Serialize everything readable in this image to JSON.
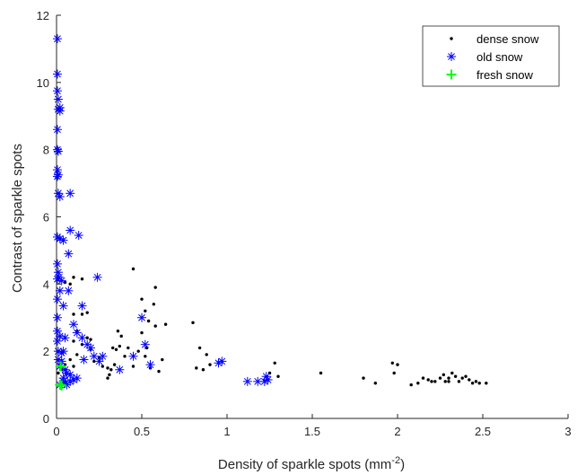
{
  "chart_data": {
    "type": "scatter",
    "xlabel": "Density of sparkle spots (mm",
    "xlabel_sup": "-2",
    "xlabel_close": ")",
    "ylabel": "Contrast of sparkle spots",
    "xlim": [
      0,
      3
    ],
    "ylim": [
      0,
      12
    ],
    "xticks": [
      "0",
      "0.5",
      "1",
      "1.5",
      "2",
      "2.5",
      "3"
    ],
    "yticks": [
      "0",
      "2",
      "4",
      "6",
      "8",
      "10",
      "12"
    ],
    "grid": false,
    "legend_position": "top-right",
    "series": [
      {
        "name": "dense snow",
        "marker": "dot",
        "color": "#000000",
        "points": [
          [
            0.01,
            1.35
          ],
          [
            0.03,
            1.45
          ],
          [
            0.05,
            1.6
          ],
          [
            0.08,
            1.75
          ],
          [
            0.1,
            1.55
          ],
          [
            0.12,
            1.9
          ],
          [
            0.15,
            2.2
          ],
          [
            0.18,
            2.4
          ],
          [
            0.2,
            2.05
          ],
          [
            0.22,
            1.7
          ],
          [
            0.25,
            1.8
          ],
          [
            0.27,
            1.55
          ],
          [
            0.3,
            1.5
          ],
          [
            0.32,
            1.45
          ],
          [
            0.34,
            1.6
          ],
          [
            0.3,
            1.2
          ],
          [
            0.31,
            1.3
          ],
          [
            0.05,
            4.05
          ],
          [
            0.08,
            4.0
          ],
          [
            0.1,
            4.2
          ],
          [
            0.15,
            4.15
          ],
          [
            0.1,
            3.1
          ],
          [
            0.15,
            3.1
          ],
          [
            0.18,
            3.15
          ],
          [
            0.12,
            2.6
          ],
          [
            0.1,
            2.3
          ],
          [
            0.2,
            2.35
          ],
          [
            0.33,
            2.1
          ],
          [
            0.35,
            2.05
          ],
          [
            0.36,
            2.6
          ],
          [
            0.38,
            2.45
          ],
          [
            0.37,
            2.15
          ],
          [
            0.4,
            1.85
          ],
          [
            0.42,
            2.1
          ],
          [
            0.45,
            1.55
          ],
          [
            0.48,
            2.0
          ],
          [
            0.5,
            2.55
          ],
          [
            0.52,
            1.85
          ],
          [
            0.53,
            2.1
          ],
          [
            0.55,
            1.5
          ],
          [
            0.5,
            3.55
          ],
          [
            0.52,
            3.2
          ],
          [
            0.54,
            2.9
          ],
          [
            0.57,
            3.4
          ],
          [
            0.58,
            2.75
          ],
          [
            0.6,
            1.4
          ],
          [
            0.62,
            1.75
          ],
          [
            0.64,
            2.8
          ],
          [
            0.45,
            4.45
          ],
          [
            0.58,
            3.9
          ],
          [
            0.8,
            2.85
          ],
          [
            0.82,
            1.5
          ],
          [
            0.84,
            2.1
          ],
          [
            0.86,
            1.45
          ],
          [
            0.88,
            1.9
          ],
          [
            0.9,
            1.6
          ],
          [
            1.28,
            1.65
          ],
          [
            1.25,
            1.35
          ],
          [
            1.3,
            1.25
          ],
          [
            1.55,
            1.35
          ],
          [
            1.8,
            1.2
          ],
          [
            1.87,
            1.05
          ],
          [
            1.97,
            1.65
          ],
          [
            2.0,
            1.6
          ],
          [
            1.98,
            1.35
          ],
          [
            2.08,
            1.0
          ],
          [
            2.12,
            1.05
          ],
          [
            2.15,
            1.2
          ],
          [
            2.18,
            1.15
          ],
          [
            2.2,
            1.1
          ],
          [
            2.22,
            1.1
          ],
          [
            2.25,
            1.2
          ],
          [
            2.27,
            1.3
          ],
          [
            2.28,
            1.1
          ],
          [
            2.3,
            1.1
          ],
          [
            2.32,
            1.35
          ],
          [
            2.34,
            1.25
          ],
          [
            2.36,
            1.1
          ],
          [
            2.38,
            1.2
          ],
          [
            2.4,
            1.25
          ],
          [
            2.42,
            1.15
          ],
          [
            2.44,
            1.05
          ],
          [
            2.46,
            1.1
          ],
          [
            2.48,
            1.05
          ],
          [
            2.52,
            1.05
          ],
          [
            2.3,
            1.2
          ]
        ]
      },
      {
        "name": "old snow",
        "marker": "asterisk",
        "color": "#0000ff",
        "points": [
          [
            0.005,
            11.3
          ],
          [
            0.005,
            10.25
          ],
          [
            0.005,
            9.75
          ],
          [
            0.01,
            9.5
          ],
          [
            0.01,
            9.2
          ],
          [
            0.02,
            9.15
          ],
          [
            0.02,
            9.25
          ],
          [
            0.005,
            8.6
          ],
          [
            0.005,
            8.0
          ],
          [
            0.01,
            7.95
          ],
          [
            0.005,
            7.4
          ],
          [
            0.005,
            7.2
          ],
          [
            0.01,
            7.25
          ],
          [
            0.01,
            6.7
          ],
          [
            0.02,
            6.6
          ],
          [
            0.08,
            6.7
          ],
          [
            0.08,
            5.6
          ],
          [
            0.13,
            5.45
          ],
          [
            0.005,
            5.4
          ],
          [
            0.02,
            5.35
          ],
          [
            0.04,
            5.3
          ],
          [
            0.07,
            4.9
          ],
          [
            0.005,
            4.6
          ],
          [
            0.01,
            4.35
          ],
          [
            0.005,
            4.15
          ],
          [
            0.015,
            4.2
          ],
          [
            0.03,
            4.1
          ],
          [
            0.24,
            4.2
          ],
          [
            0.02,
            3.8
          ],
          [
            0.07,
            3.8
          ],
          [
            0.005,
            3.55
          ],
          [
            0.04,
            3.35
          ],
          [
            0.15,
            3.35
          ],
          [
            0.005,
            3.0
          ],
          [
            0.1,
            2.8
          ],
          [
            0.005,
            2.6
          ],
          [
            0.02,
            2.45
          ],
          [
            0.05,
            2.4
          ],
          [
            0.12,
            2.55
          ],
          [
            0.15,
            2.4
          ],
          [
            0.18,
            2.2
          ],
          [
            0.2,
            2.1
          ],
          [
            0.22,
            1.85
          ],
          [
            0.25,
            1.7
          ],
          [
            0.27,
            1.85
          ],
          [
            0.16,
            1.75
          ],
          [
            0.005,
            2.3
          ],
          [
            0.01,
            2.0
          ],
          [
            0.03,
            1.95
          ],
          [
            0.04,
            2.0
          ],
          [
            0.01,
            1.75
          ],
          [
            0.03,
            1.7
          ],
          [
            0.02,
            1.55
          ],
          [
            0.05,
            1.45
          ],
          [
            0.06,
            1.35
          ],
          [
            0.08,
            1.3
          ],
          [
            0.04,
            1.2
          ],
          [
            0.1,
            1.15
          ],
          [
            0.12,
            1.2
          ],
          [
            0.05,
            1.05
          ],
          [
            0.02,
            1.0
          ],
          [
            0.04,
            1.1
          ],
          [
            0.06,
            1.0
          ],
          [
            0.08,
            1.1
          ],
          [
            0.37,
            1.45
          ],
          [
            0.45,
            1.85
          ],
          [
            0.5,
            3.0
          ],
          [
            0.52,
            2.2
          ],
          [
            0.55,
            1.6
          ],
          [
            0.95,
            1.65
          ],
          [
            0.97,
            1.7
          ],
          [
            1.12,
            1.1
          ],
          [
            1.18,
            1.1
          ],
          [
            1.22,
            1.1
          ],
          [
            1.23,
            1.25
          ],
          [
            1.24,
            1.15
          ]
        ]
      },
      {
        "name": "fresh snow",
        "marker": "plus",
        "color": "#00ff00",
        "points": [
          [
            0.025,
            1.55
          ],
          [
            0.02,
            1.0
          ],
          [
            0.03,
            0.98
          ]
        ]
      }
    ]
  }
}
